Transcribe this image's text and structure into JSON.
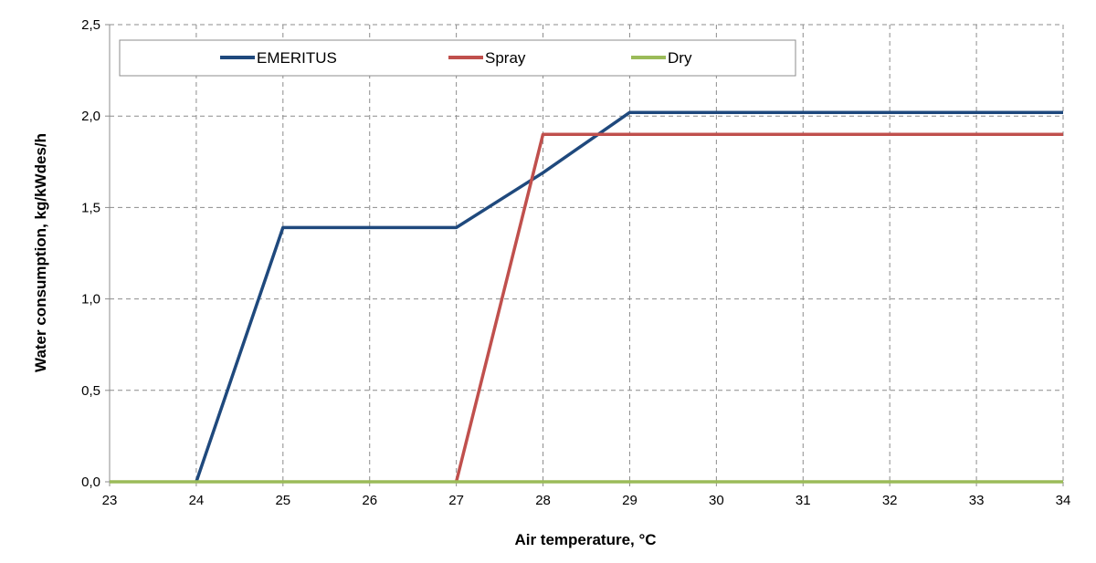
{
  "chart_data": {
    "type": "line",
    "title": "",
    "xlabel": "Air temperature, °C",
    "ylabel": "Water consumption, kg/kWdes/h",
    "xlim": [
      23,
      34
    ],
    "ylim": [
      0,
      2.5
    ],
    "x_ticks": [
      "23",
      "24",
      "25",
      "26",
      "27",
      "28",
      "29",
      "30",
      "31",
      "32",
      "33",
      "34"
    ],
    "y_ticks": [
      "0,0",
      "0,5",
      "1,0",
      "1,5",
      "2,0",
      "2,5"
    ],
    "grid": true,
    "legend_position": "top",
    "series": [
      {
        "name": "EMERITUS",
        "color": "#1f497d",
        "points": [
          [
            24,
            0
          ],
          [
            25,
            1.39
          ],
          [
            27,
            1.39
          ],
          [
            28,
            1.69
          ],
          [
            29,
            2.02
          ],
          [
            34,
            2.02
          ]
        ]
      },
      {
        "name": "Spray",
        "color": "#c0504d",
        "points": [
          [
            27,
            0
          ],
          [
            28,
            1.9
          ],
          [
            34,
            1.9
          ]
        ]
      },
      {
        "name": "Dry",
        "color": "#9bbb59",
        "points": [
          [
            23,
            0
          ],
          [
            34,
            0
          ]
        ]
      }
    ]
  }
}
